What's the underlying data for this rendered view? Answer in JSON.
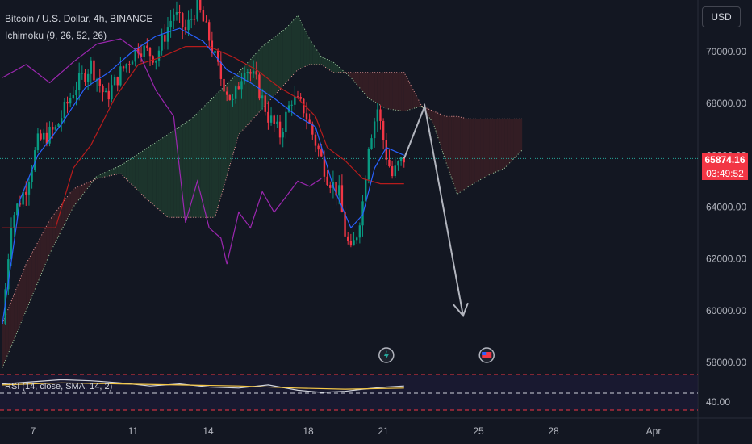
{
  "legend": {
    "symbol": "Bitcoin / U.S. Dollar, 4h, BINANCE",
    "indicator": "Ichimoku (9, 26, 52, 26)"
  },
  "currency_button": "USD",
  "rsi_label": "RSI (14, close, SMA, 14, 2)",
  "current_price": "65874.16",
  "countdown": "03:49:52",
  "colors": {
    "background": "#131722",
    "candle_up": "#089981",
    "candle_down": "#f23645",
    "conversion_line": "#2962ff",
    "base_line": "#b71c1c",
    "lagging_line": "#9c27b0",
    "leading_a": "#a5d6a7",
    "leading_b": "#ef9a9a",
    "cloud_bull": "#1f3a2e",
    "cloud_bear": "#3a1f24",
    "forecast_arrow": "#b2b5be"
  },
  "chart_data": {
    "type": "candlestick",
    "symbol": "BTCUSD",
    "timeframe": "4h",
    "y_axis": {
      "ticks": [
        "70000.00",
        "68000.00",
        "66000.00",
        "64000.00",
        "62000.00",
        "60000.00",
        "58000.00"
      ],
      "range": [
        57500,
        71800
      ]
    },
    "x_axis": {
      "ticks": [
        "7",
        "11",
        "14",
        "18",
        "21",
        "25",
        "28",
        "Apr"
      ]
    },
    "rsi_axis": {
      "ticks": [
        "40.00"
      ]
    },
    "price_path": [
      [
        0,
        59500
      ],
      [
        3,
        63500
      ],
      [
        8,
        64800
      ],
      [
        12,
        66500
      ],
      [
        18,
        67000
      ],
      [
        24,
        68500
      ],
      [
        30,
        69500
      ],
      [
        35,
        68200
      ],
      [
        40,
        69200
      ],
      [
        46,
        70200
      ],
      [
        52,
        69800
      ],
      [
        58,
        71500
      ],
      [
        62,
        70800
      ],
      [
        66,
        71800
      ],
      [
        70,
        70500
      ],
      [
        74,
        69000
      ],
      [
        78,
        68000
      ],
      [
        82,
        69500
      ],
      [
        86,
        68800
      ],
      [
        90,
        67500
      ],
      [
        94,
        66800
      ],
      [
        98,
        68200
      ],
      [
        102,
        67800
      ],
      [
        106,
        66500
      ],
      [
        110,
        65200
      ],
      [
        114,
        64500
      ],
      [
        116,
        63000
      ],
      [
        118,
        62200
      ],
      [
        120,
        63000
      ],
      [
        122,
        64200
      ],
      [
        124,
        66500
      ],
      [
        127,
        67800
      ],
      [
        130,
        66000
      ],
      [
        132,
        65200
      ],
      [
        134,
        65600
      ],
      [
        136,
        65874
      ]
    ],
    "forecast": [
      [
        136,
        65874
      ],
      [
        143,
        67900
      ],
      [
        156,
        59800
      ]
    ],
    "ichimoku": {
      "conversion": [
        [
          0,
          59500
        ],
        [
          6,
          64300
        ],
        [
          12,
          66000
        ],
        [
          20,
          67200
        ],
        [
          28,
          68600
        ],
        [
          36,
          69200
        ],
        [
          44,
          70000
        ],
        [
          52,
          70600
        ],
        [
          60,
          70900
        ],
        [
          68,
          70400
        ],
        [
          76,
          69300
        ],
        [
          84,
          68800
        ],
        [
          92,
          68200
        ],
        [
          100,
          67500
        ],
        [
          106,
          67100
        ],
        [
          112,
          64800
        ],
        [
          118,
          63200
        ],
        [
          122,
          63700
        ],
        [
          126,
          65500
        ],
        [
          130,
          66300
        ],
        [
          136,
          66000
        ]
      ],
      "base": [
        [
          0,
          63200
        ],
        [
          10,
          63200
        ],
        [
          18,
          63200
        ],
        [
          24,
          65500
        ],
        [
          30,
          66400
        ],
        [
          38,
          68200
        ],
        [
          46,
          69500
        ],
        [
          54,
          69800
        ],
        [
          62,
          70200
        ],
        [
          70,
          70200
        ],
        [
          78,
          69800
        ],
        [
          86,
          69300
        ],
        [
          94,
          68600
        ],
        [
          100,
          68200
        ],
        [
          106,
          67500
        ],
        [
          110,
          66300
        ],
        [
          116,
          65800
        ],
        [
          122,
          65100
        ],
        [
          128,
          64900
        ],
        [
          136,
          64900
        ]
      ],
      "lagging": [
        [
          0,
          69000
        ],
        [
          8,
          69500
        ],
        [
          16,
          68800
        ],
        [
          24,
          69600
        ],
        [
          32,
          70300
        ],
        [
          40,
          70500
        ],
        [
          46,
          70000
        ],
        [
          52,
          68500
        ],
        [
          58,
          67500
        ],
        [
          62,
          63400
        ],
        [
          66,
          65000
        ],
        [
          70,
          63200
        ],
        [
          74,
          62800
        ],
        [
          76,
          61800
        ],
        [
          80,
          63800
        ],
        [
          84,
          63200
        ],
        [
          88,
          64600
        ],
        [
          92,
          63800
        ],
        [
          96,
          64400
        ],
        [
          100,
          65000
        ],
        [
          104,
          64800
        ],
        [
          108,
          65100
        ]
      ],
      "cloud": {
        "span_a": [
          [
            0,
            57800
          ],
          [
            8,
            60000
          ],
          [
            16,
            62200
          ],
          [
            24,
            64000
          ],
          [
            32,
            65200
          ],
          [
            40,
            65600
          ],
          [
            48,
            66200
          ],
          [
            56,
            66800
          ],
          [
            64,
            67400
          ],
          [
            72,
            68300
          ],
          [
            80,
            69200
          ],
          [
            88,
            70200
          ],
          [
            96,
            70900
          ],
          [
            100,
            71400
          ],
          [
            104,
            70500
          ],
          [
            108,
            69800
          ],
          [
            112,
            69600
          ],
          [
            118,
            69000
          ],
          [
            124,
            68200
          ],
          [
            130,
            67800
          ],
          [
            136,
            67700
          ],
          [
            142,
            67900
          ],
          [
            146,
            67200
          ],
          [
            150,
            65800
          ],
          [
            154,
            64500
          ],
          [
            158,
            64800
          ],
          [
            164,
            65200
          ],
          [
            170,
            65500
          ],
          [
            176,
            66200
          ]
        ],
        "span_b": [
          [
            0,
            59500
          ],
          [
            8,
            61800
          ],
          [
            16,
            63500
          ],
          [
            24,
            64700
          ],
          [
            32,
            65100
          ],
          [
            40,
            65300
          ],
          [
            48,
            64400
          ],
          [
            56,
            63600
          ],
          [
            64,
            63600
          ],
          [
            72,
            63600
          ],
          [
            80,
            66800
          ],
          [
            88,
            67800
          ],
          [
            96,
            68800
          ],
          [
            100,
            69300
          ],
          [
            104,
            69500
          ],
          [
            108,
            69500
          ],
          [
            112,
            69200
          ],
          [
            118,
            69200
          ],
          [
            124,
            69200
          ],
          [
            130,
            69200
          ],
          [
            136,
            69200
          ],
          [
            142,
            67900
          ],
          [
            146,
            67700
          ],
          [
            150,
            67500
          ],
          [
            154,
            67500
          ],
          [
            158,
            67400
          ],
          [
            164,
            67400
          ],
          [
            170,
            67400
          ],
          [
            176,
            67400
          ]
        ]
      }
    },
    "rsi": [
      [
        0,
        48
      ],
      [
        10,
        50
      ],
      [
        20,
        52
      ],
      [
        30,
        51
      ],
      [
        40,
        49
      ],
      [
        50,
        46
      ],
      [
        60,
        48
      ],
      [
        70,
        45
      ],
      [
        80,
        44
      ],
      [
        90,
        47
      ],
      [
        100,
        42
      ],
      [
        108,
        40
      ],
      [
        116,
        41
      ],
      [
        122,
        43
      ],
      [
        130,
        45
      ],
      [
        136,
        46
      ]
    ],
    "rsi_ma": [
      [
        0,
        47
      ],
      [
        20,
        49
      ],
      [
        40,
        48
      ],
      [
        60,
        47
      ],
      [
        80,
        46
      ],
      [
        100,
        44
      ],
      [
        116,
        43
      ],
      [
        136,
        44
      ]
    ],
    "events": [
      {
        "x": 130,
        "icon": "lightning-icon"
      },
      {
        "x": 164,
        "icon": "us-flag-icon"
      }
    ]
  }
}
